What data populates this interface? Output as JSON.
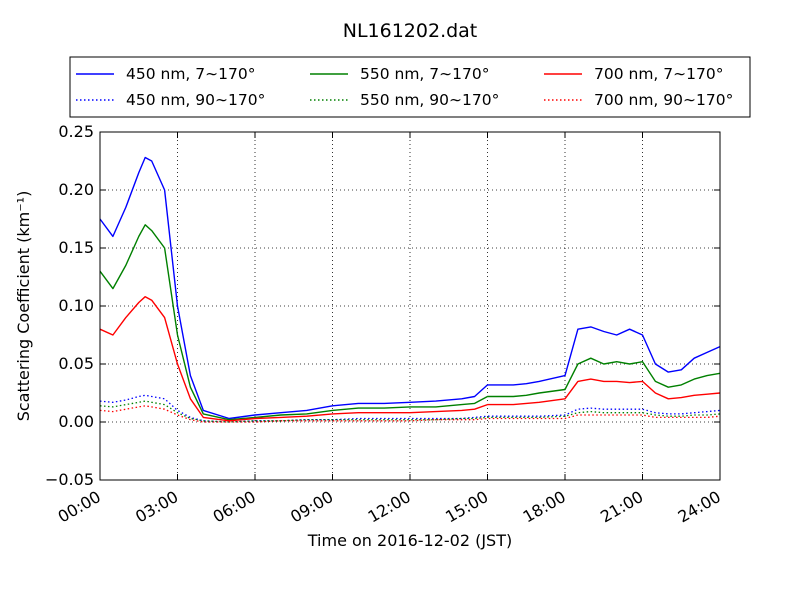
{
  "chart_data": {
    "type": "line",
    "title": "NL161202.dat",
    "xlabel": "Time on 2016-12-02 (JST)",
    "ylabel": "Scattering Coefficient (km⁻¹)",
    "xlim": [
      "00:00",
      "24:00"
    ],
    "ylim": [
      -0.05,
      0.25
    ],
    "grid": true,
    "legend_position": "top (above plot)",
    "xticks": [
      "00:00",
      "03:00",
      "06:00",
      "09:00",
      "12:00",
      "15:00",
      "18:00",
      "21:00",
      "24:00"
    ],
    "yticks": [
      "−0.05",
      "0.00",
      "0.05",
      "0.10",
      "0.15",
      "0.20",
      "0.25"
    ],
    "x": [
      "00:00",
      "00:30",
      "01:00",
      "01:30",
      "01:45",
      "02:00",
      "02:30",
      "03:00",
      "03:30",
      "04:00",
      "05:00",
      "06:00",
      "07:00",
      "08:00",
      "09:00",
      "10:00",
      "11:00",
      "12:00",
      "13:00",
      "14:00",
      "14:30",
      "15:00",
      "16:00",
      "16:30",
      "17:00",
      "18:00",
      "18:30",
      "19:00",
      "19:30",
      "20:00",
      "20:30",
      "21:00",
      "21:30",
      "22:00",
      "22:30",
      "23:00",
      "23:30",
      "24:00"
    ],
    "series": [
      {
        "name": "450 nm, 7∼170°",
        "color": "#0000ff",
        "style": "solid",
        "values": [
          0.175,
          0.16,
          0.185,
          0.215,
          0.228,
          0.225,
          0.2,
          0.1,
          0.04,
          0.01,
          0.003,
          0.006,
          0.008,
          0.01,
          0.014,
          0.016,
          0.016,
          0.017,
          0.018,
          0.02,
          0.022,
          0.032,
          0.032,
          0.033,
          0.035,
          0.04,
          0.08,
          0.082,
          0.078,
          0.075,
          0.08,
          0.075,
          0.05,
          0.043,
          0.045,
          0.055,
          0.06,
          0.065
        ]
      },
      {
        "name": "550 nm, 7∼170°",
        "color": "#008000",
        "style": "solid",
        "values": [
          0.13,
          0.115,
          0.135,
          0.16,
          0.17,
          0.165,
          0.15,
          0.075,
          0.03,
          0.007,
          0.002,
          0.004,
          0.006,
          0.007,
          0.01,
          0.012,
          0.012,
          0.013,
          0.013,
          0.015,
          0.016,
          0.022,
          0.022,
          0.023,
          0.025,
          0.028,
          0.05,
          0.055,
          0.05,
          0.052,
          0.05,
          0.052,
          0.035,
          0.03,
          0.032,
          0.037,
          0.04,
          0.042
        ]
      },
      {
        "name": "700 nm, 7∼170°",
        "color": "#ff0000",
        "style": "solid",
        "values": [
          0.08,
          0.075,
          0.09,
          0.103,
          0.108,
          0.105,
          0.09,
          0.05,
          0.02,
          0.004,
          0.001,
          0.003,
          0.004,
          0.005,
          0.007,
          0.008,
          0.008,
          0.008,
          0.009,
          0.01,
          0.011,
          0.015,
          0.015,
          0.016,
          0.017,
          0.02,
          0.035,
          0.037,
          0.035,
          0.035,
          0.034,
          0.035,
          0.025,
          0.02,
          0.021,
          0.023,
          0.024,
          0.025
        ]
      },
      {
        "name": "450 nm, 90∼170°",
        "color": "#0000ff",
        "style": "dotted",
        "values": [
          0.018,
          0.017,
          0.019,
          0.022,
          0.023,
          0.022,
          0.02,
          0.01,
          0.004,
          0.001,
          0.0,
          0.001,
          0.001,
          0.002,
          0.002,
          0.003,
          0.003,
          0.003,
          0.003,
          0.003,
          0.004,
          0.005,
          0.005,
          0.005,
          0.005,
          0.006,
          0.011,
          0.012,
          0.011,
          0.011,
          0.011,
          0.011,
          0.008,
          0.007,
          0.007,
          0.008,
          0.009,
          0.01
        ]
      },
      {
        "name": "550 nm, 90∼170°",
        "color": "#008000",
        "style": "dotted",
        "values": [
          0.014,
          0.013,
          0.015,
          0.017,
          0.018,
          0.017,
          0.015,
          0.008,
          0.003,
          0.001,
          0.0,
          0.001,
          0.001,
          0.002,
          0.002,
          0.002,
          0.002,
          0.002,
          0.002,
          0.003,
          0.003,
          0.004,
          0.004,
          0.004,
          0.004,
          0.005,
          0.008,
          0.009,
          0.008,
          0.008,
          0.008,
          0.008,
          0.006,
          0.005,
          0.005,
          0.006,
          0.006,
          0.007
        ]
      },
      {
        "name": "700 nm, 90∼170°",
        "color": "#ff0000",
        "style": "dotted",
        "values": [
          0.01,
          0.009,
          0.011,
          0.013,
          0.014,
          0.013,
          0.011,
          0.006,
          0.002,
          0.0,
          0.0,
          0.0,
          0.001,
          0.001,
          0.001,
          0.001,
          0.001,
          0.001,
          0.002,
          0.002,
          0.002,
          0.003,
          0.003,
          0.003,
          0.003,
          0.003,
          0.006,
          0.006,
          0.006,
          0.006,
          0.006,
          0.006,
          0.004,
          0.004,
          0.004,
          0.004,
          0.004,
          0.005
        ]
      }
    ]
  }
}
